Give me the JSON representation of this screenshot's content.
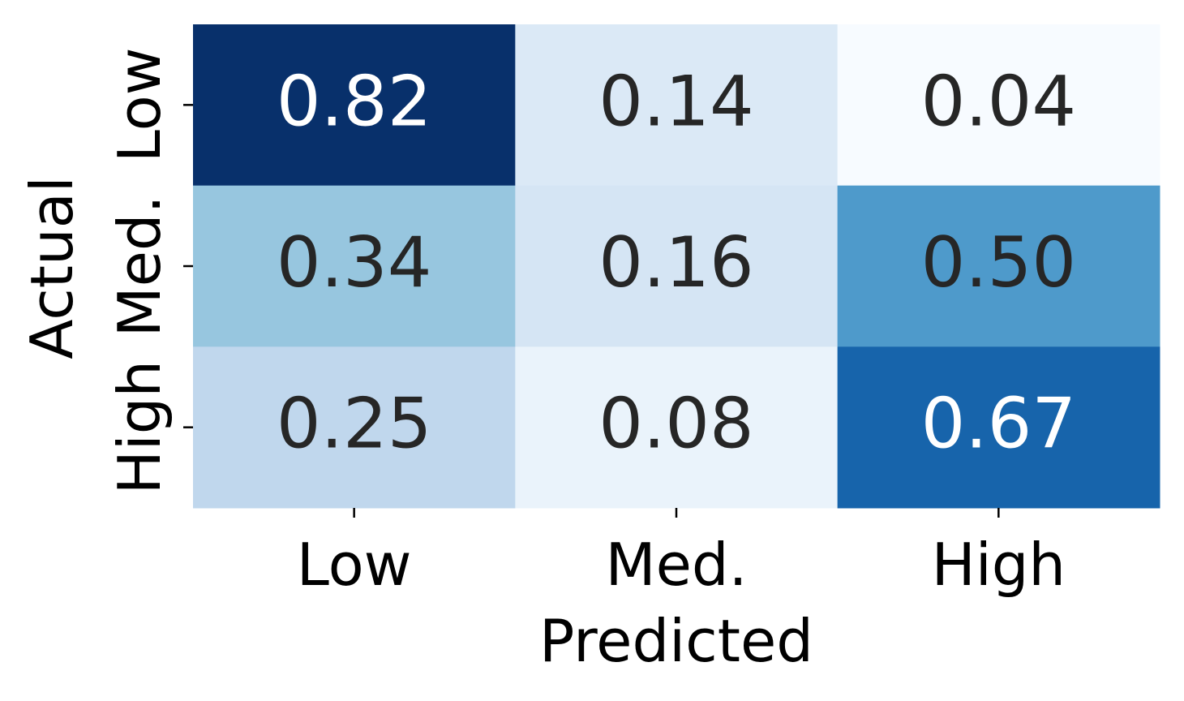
{
  "chart_data": {
    "type": "heatmap",
    "xlabel": "Predicted",
    "ylabel": "Actual",
    "x_categories": [
      "Low",
      "Med.",
      "High"
    ],
    "y_categories": [
      "Low",
      "Med.",
      "High"
    ],
    "values": [
      [
        0.82,
        0.14,
        0.04
      ],
      [
        0.34,
        0.16,
        0.5
      ],
      [
        0.25,
        0.08,
        0.67
      ]
    ],
    "value_format": "0.00",
    "colormap": "Blues",
    "vmin": 0.04,
    "vmax": 0.82,
    "colorbar": false,
    "cell_colors": [
      [
        "#08306b",
        "#dbe9f6",
        "#f7fbff"
      ],
      [
        "#97c6df",
        "#d5e5f4",
        "#4e9acb"
      ],
      [
        "#c0d7ed",
        "#eaf3fb",
        "#1764ab"
      ]
    ],
    "dark_text_color": "#262626",
    "light_text_color": "#ffffff"
  }
}
